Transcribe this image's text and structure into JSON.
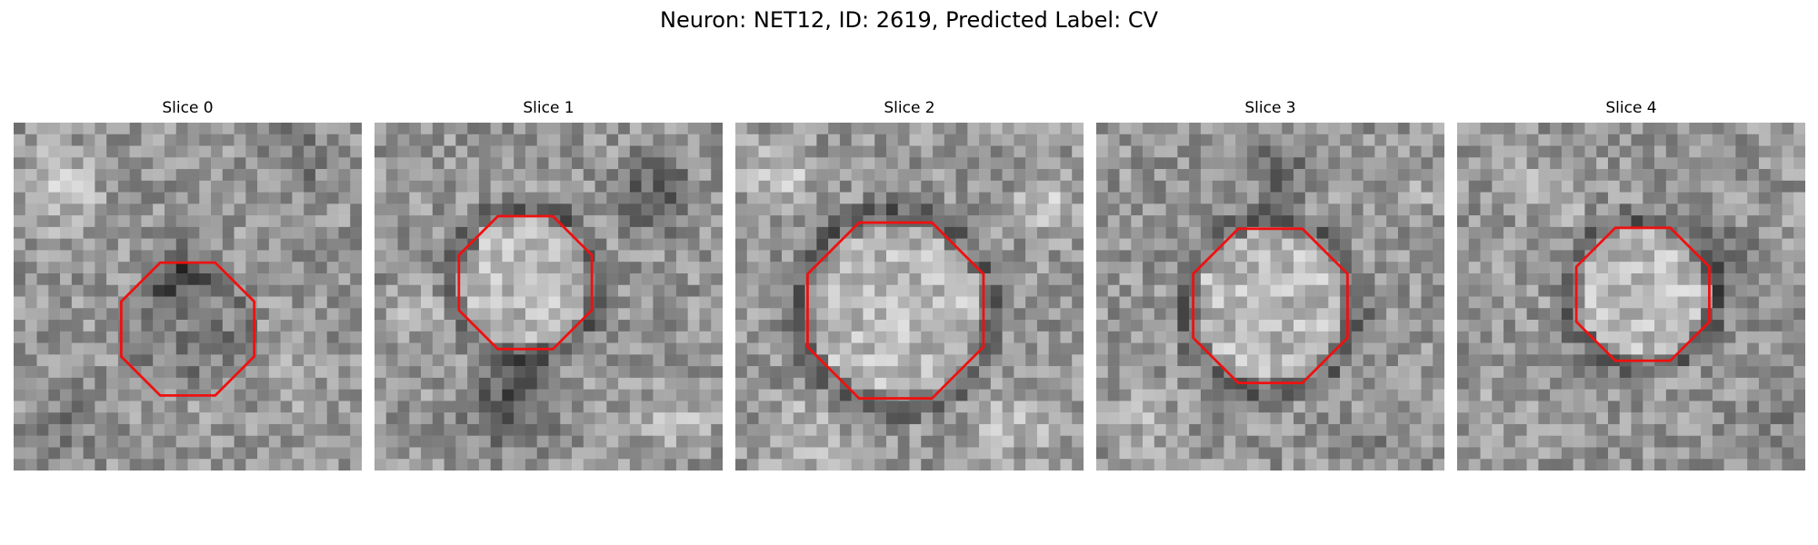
{
  "title": "Neuron: NET12, ID: 2619, Predicted Label: CV",
  "neuron": "NET12",
  "id": "2619",
  "predicted_label": "CV",
  "outline_color": "#ee1111",
  "colormap": "grayscale",
  "panels": [
    {
      "label": "Slice 0",
      "center": "dark",
      "ring": "none",
      "seed": 11
    },
    {
      "label": "Slice 1",
      "center": "light",
      "ring": "dark",
      "seed": 23
    },
    {
      "label": "Slice 2",
      "center": "light",
      "ring": "dark",
      "seed": 37
    },
    {
      "label": "Slice 3",
      "center": "light",
      "ring": "dark",
      "seed": 41
    },
    {
      "label": "Slice 4",
      "center": "light",
      "ring": "dark",
      "seed": 53
    }
  ]
}
